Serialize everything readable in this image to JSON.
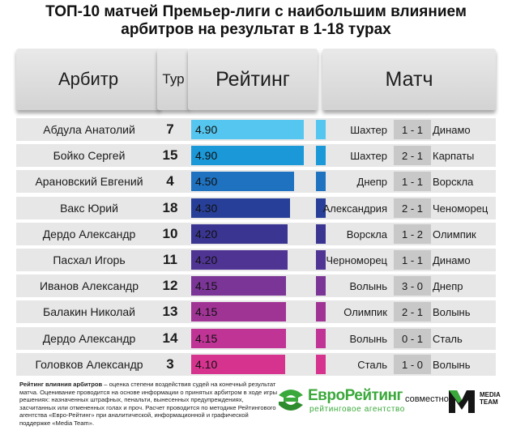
{
  "title_line1": "ТОП-10 матчей Премьер-лиги с наибольшим влиянием",
  "title_line2": "арбитров на результат в 1-18 турах",
  "headers": {
    "referee": "Арбитр",
    "tour": "Тур",
    "rating": "Рейтинг",
    "match": "Матч"
  },
  "chart_data": {
    "type": "bar",
    "x_range": [
      0,
      5.3
    ],
    "categories": [
      "Абдула Анатолий",
      "Бойко Сергей",
      "Арановский Евгений",
      "Вакс Юрий",
      "Дердо Александр",
      "Пасхал Игорь",
      "Иванов Александр",
      "Балакин Николай",
      "Дердо Александр",
      "Головков Александр"
    ],
    "rows": [
      {
        "referee": "Абдула Анатолий",
        "tour": "7",
        "rating": 4.9,
        "rating_label": "4.90",
        "home": "Шахтер",
        "score": "1 - 1",
        "away": "Динамо",
        "color": "#55c6ef"
      },
      {
        "referee": "Бойко Сергей",
        "tour": "15",
        "rating": 4.9,
        "rating_label": "4.90",
        "home": "Шахтер",
        "score": "2 - 1",
        "away": "Карпаты",
        "color": "#1b98d8"
      },
      {
        "referee": "Арановский Евгений",
        "tour": "4",
        "rating": 4.5,
        "rating_label": "4.50",
        "home": "Днепр",
        "score": "1 - 1",
        "away": "Ворскла",
        "color": "#1e72c0"
      },
      {
        "referee": "Вакс Юрий",
        "tour": "18",
        "rating": 4.3,
        "rating_label": "4.30",
        "home": "Александрия",
        "score": "2 - 1",
        "away": "Ченоморец",
        "color": "#273f98"
      },
      {
        "referee": "Дердо Александр",
        "tour": "10",
        "rating": 4.2,
        "rating_label": "4.20",
        "home": "Ворскла",
        "score": "1 - 2",
        "away": "Олимпик",
        "color": "#3b3592"
      },
      {
        "referee": "Пасхал Игорь",
        "tour": "11",
        "rating": 4.2,
        "rating_label": "4.20",
        "home": "Черноморец",
        "score": "1 - 1",
        "away": "Динамо",
        "color": "#4f3494"
      },
      {
        "referee": "Иванов Александр",
        "tour": "12",
        "rating": 4.15,
        "rating_label": "4.15",
        "home": "Волынь",
        "score": "3 - 0",
        "away": "Днепр",
        "color": "#7a3596"
      },
      {
        "referee": "Балакин Николай",
        "tour": "13",
        "rating": 4.15,
        "rating_label": "4.15",
        "home": "Олимпик",
        "score": "2 - 1",
        "away": "Волынь",
        "color": "#a03495"
      },
      {
        "referee": "Дердо Александр",
        "tour": "14",
        "rating": 4.15,
        "rating_label": "4.15",
        "home": "Волынь",
        "score": "0 - 1",
        "away": "Сталь",
        "color": "#c03496"
      },
      {
        "referee": "Головков Александр",
        "tour": "3",
        "rating": 4.1,
        "rating_label": "4.10",
        "home": "Сталь",
        "score": "1 - 0",
        "away": "Волынь",
        "color": "#d6338f"
      }
    ]
  },
  "footnote": {
    "bold": "Рейтинг влияния арбитров",
    "text": " – оценка степени воздействия судей на конечный результат матча. Оценивание проводится на основе информации о принятых арбитром в ходе игры решениях: назначенных штрафных, пенальти, вынесенных предупреждениях, засчитанных или отмененных голах и проч. Расчет проводится по методике Рейтингового агентства «Евро-Рейтинг» при аналитической, информационной и графической поддержке «Media Team»."
  },
  "logos": {
    "brand_name": "ЕвроРейтинг",
    "brand_sub": "рейтинговое агентство",
    "together": "совместно с",
    "media_team": "MEDIA TEAM",
    "brand_color": "#3aa83a"
  }
}
